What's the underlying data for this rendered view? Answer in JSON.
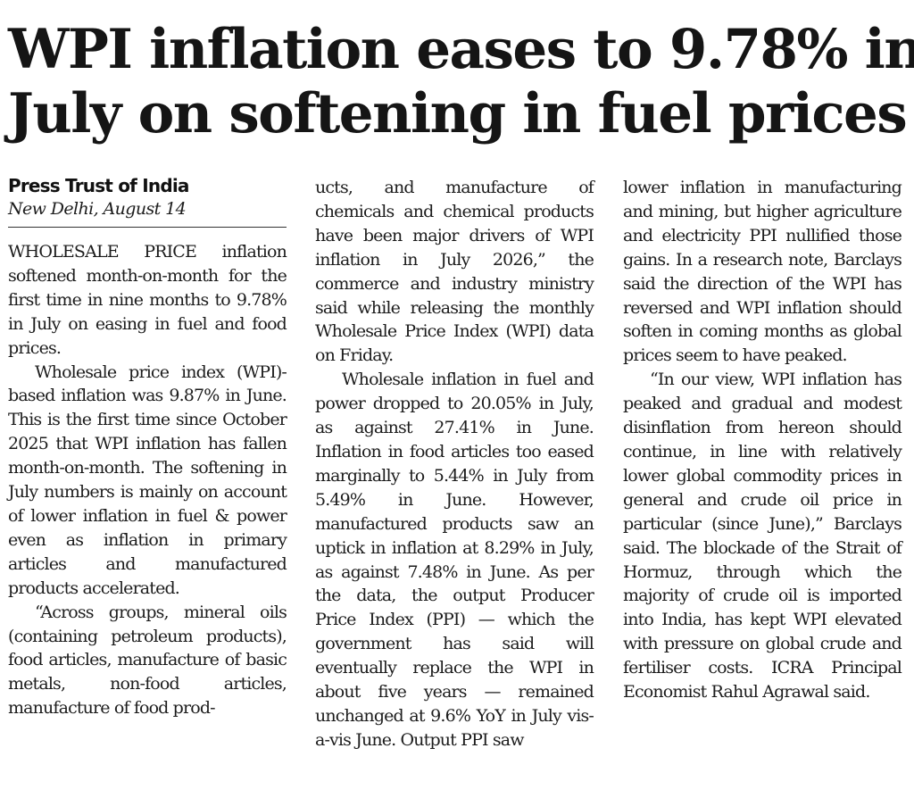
{
  "headline": {
    "line1": "WPI inflation eases to 9.78% in",
    "line2": "July on softening in fuel prices"
  },
  "byline": {
    "agency": "Press Trust of India",
    "dateline": "New Delhi, August 14"
  },
  "column1": {
    "p1": "WHOLESALE PRICE inflation softened month-on-month for the first time in nine months to 9.78% in July on easing in fuel and food prices.",
    "p2": "Wholesale price index (WPI)-based inflation was 9.87% in June. This is the first time since October 2025 that WPI inflation has fallen month-on-month. The softening in July numbers is mainly on account of lower inflation in fuel & power even as inflation in primary articles and manufactured products accelerated.",
    "p3": "“Across groups, mineral oils (containing petroleum products), food articles, manufacture of basic metals, non-food articles, manufacture of food prod-"
  },
  "column2": {
    "p1": "ucts, and manufacture of chemicals and chemical products have been major drivers of WPI inflation in July 2026,” the commerce and industry ministry said while releasing the monthly Wholesale Price Index (WPI) data on Friday.",
    "p2": "Wholesale inflation in fuel and power dropped to 20.05% in July, as against 27.41% in June. Inflation in food articles too eased marginally to 5.44% in July from 5.49% in June. However, manufactured products saw an uptick in inflation at 8.29% in July, as against 7.48% in June. As per the data, the output Producer Price Index (PPI) — which the government has said will eventually replace the WPI in about five years — remained unchanged at 9.6% YoY in July vis-a-vis June. Output PPI saw"
  },
  "column3": {
    "p1": "lower inflation in manufacturing and mining, but higher agriculture and electricity PPI nullified those gains. In a research note, Barclays said the direction of the WPI has reversed and WPI inflation should soften in coming months as global prices seem to have peaked.",
    "p2": "“In our view, WPI inflation has peaked and gradual and modest disinflation from hereon should continue, in line with relatively lower global commodity prices in general and crude oil price in particular (since June),” Barclays said. The blockade of the Strait of Hormuz, through which the majority of crude oil is imported into India, has kept WPI elevated with pressure on global crude and fertiliser costs. ICRA Principal Economist Rahul Agrawal said."
  }
}
